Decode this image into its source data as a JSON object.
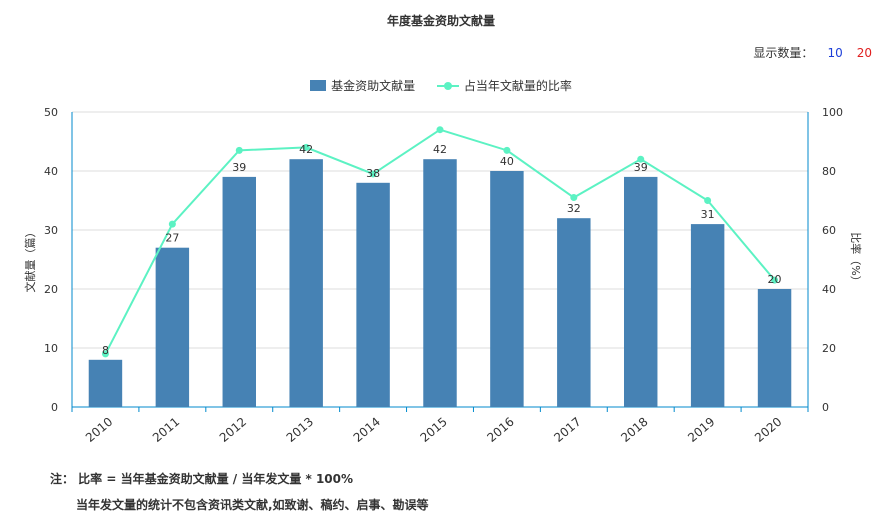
{
  "title": "年度基金资助文献量",
  "display": {
    "label": "显示数量：",
    "options": [
      "10",
      "20"
    ]
  },
  "legend": {
    "bar_label": "基金资助文献量",
    "line_label": "占当年文献量的比率"
  },
  "colors": {
    "bar": "#4682b4",
    "line": "#5cf2c3",
    "axis": "#008acd",
    "grid": "#dddddd",
    "opt_10": "#1d3fd8",
    "opt_20": "#e02020"
  },
  "chart_data": {
    "type": "bar",
    "title": "年度基金资助文献量",
    "categories": [
      "2010",
      "2011",
      "2012",
      "2013",
      "2014",
      "2015",
      "2016",
      "2017",
      "2018",
      "2019",
      "2020"
    ],
    "series": [
      {
        "name": "基金资助文献量",
        "type": "bar",
        "axis": "left",
        "values": [
          8,
          27,
          39,
          42,
          38,
          42,
          40,
          32,
          39,
          31,
          20
        ]
      },
      {
        "name": "占当年文献量的比率",
        "type": "line",
        "axis": "right",
        "values": [
          18,
          62,
          87,
          88,
          79,
          94,
          87,
          71,
          84,
          70,
          43
        ]
      }
    ],
    "ylabel": "文献量（篇）",
    "y2label": "比率（%）",
    "ylim": [
      0,
      50
    ],
    "y2lim": [
      0,
      100
    ],
    "yticks": [
      "0",
      "10",
      "20",
      "30",
      "40",
      "50"
    ],
    "y2ticks": [
      "0",
      "20",
      "40",
      "60",
      "80",
      "100"
    ],
    "grid": true,
    "legend_position": "top-center"
  },
  "note": {
    "line1": "注： 比率 = 当年基金资助文献量 / 当年发文量 * 100%",
    "line2": "当年发文量的统计不包含资讯类文献,如致谢、稿约、启事、勘误等"
  }
}
